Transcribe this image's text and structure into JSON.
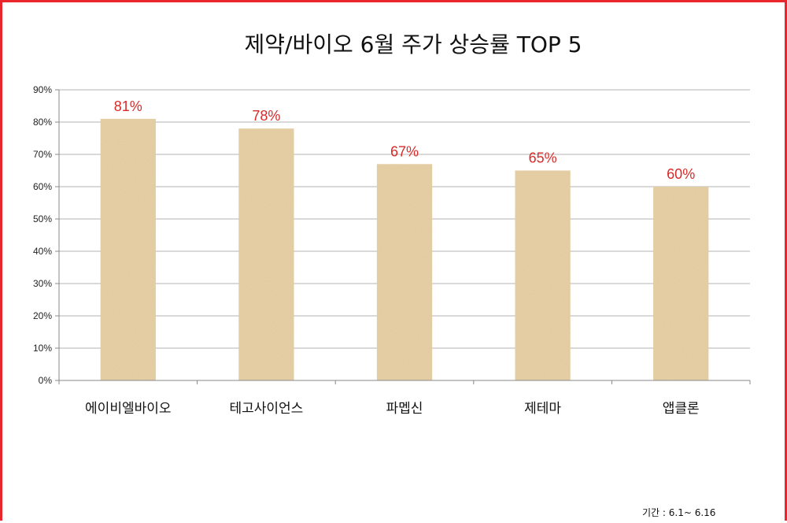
{
  "footnote": "기간 : 6.1~ 6.16",
  "colors": {
    "frame": "#e8262b",
    "bar": "#ead2a6",
    "label": "#d92a2a",
    "grid": "#b3b3b3"
  },
  "chart_data": {
    "type": "bar",
    "title": "제약/바이오 6월 주가 상승률 TOP 5",
    "categories": [
      "에이비엘바이오",
      "테고사이언스",
      "파멥신",
      "제테마",
      "앱클론"
    ],
    "values": [
      81,
      78,
      67,
      65,
      60
    ],
    "data_labels": [
      "81%",
      "78%",
      "67%",
      "65%",
      "60%"
    ],
    "ylim": [
      0,
      90
    ],
    "yticks": [
      0,
      10,
      20,
      30,
      40,
      50,
      60,
      70,
      80,
      90
    ],
    "ytick_labels": [
      "0%",
      "10%",
      "20%",
      "30%",
      "40%",
      "50%",
      "60%",
      "70%",
      "80%",
      "90%"
    ],
    "grid": true,
    "legend": "none"
  }
}
